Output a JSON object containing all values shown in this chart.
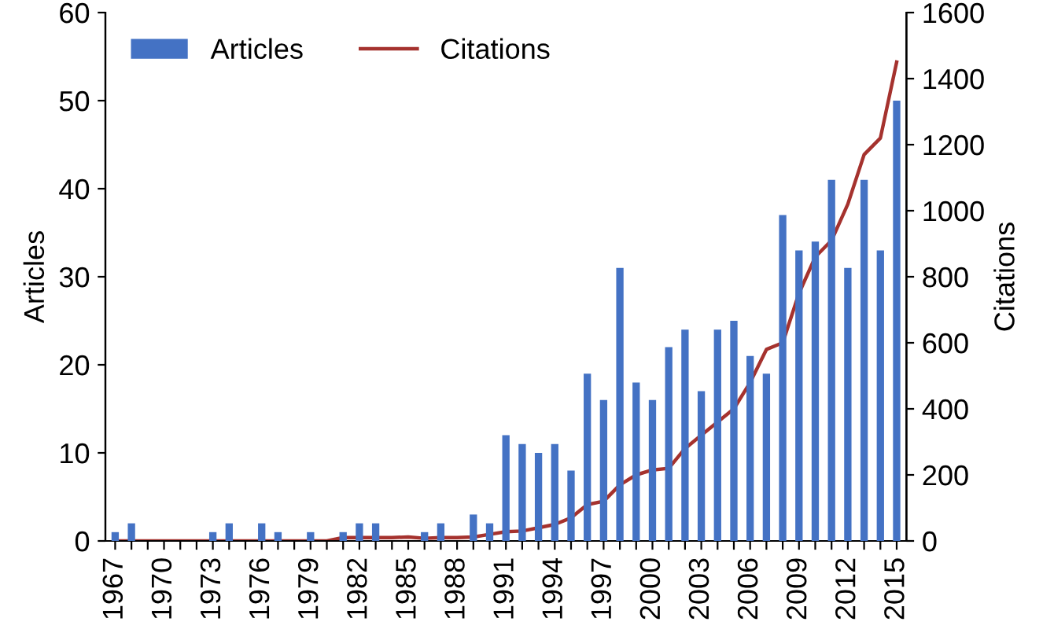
{
  "chart_data": {
    "type": "bar",
    "ylabel": "Articles",
    "y2label": "Citations",
    "categories": [
      "1967",
      null,
      null,
      "1970",
      null,
      null,
      "1973",
      null,
      null,
      "1976",
      null,
      null,
      "1979",
      null,
      null,
      "1982",
      null,
      null,
      "1985",
      null,
      null,
      "1988",
      null,
      null,
      "1991",
      null,
      null,
      "1994",
      null,
      null,
      "1997",
      null,
      null,
      "2000",
      null,
      null,
      "2003",
      null,
      null,
      "2006",
      null,
      null,
      "2009",
      null,
      null,
      "2012",
      null,
      null,
      "2015"
    ],
    "series": [
      {
        "name": "Articles",
        "color": "#4472c4",
        "values": [
          1,
          2,
          0,
          0,
          0,
          0,
          1,
          2,
          0,
          2,
          1,
          0,
          1,
          0,
          1,
          2,
          2,
          0,
          0,
          1,
          2,
          0,
          3,
          2,
          12,
          11,
          10,
          11,
          8,
          19,
          16,
          31,
          18,
          16,
          22,
          24,
          17,
          24,
          25,
          21,
          19,
          37,
          33,
          34,
          41,
          31,
          41,
          33,
          50
        ]
      },
      {
        "name": "Citations",
        "type": "line",
        "axis": "y2",
        "color": "#a5322e",
        "values": [
          0,
          0,
          0,
          0,
          0,
          0,
          0,
          0,
          0,
          0,
          0,
          0,
          0,
          0,
          10,
          10,
          10,
          10,
          12,
          8,
          10,
          10,
          12,
          20,
          28,
          30,
          40,
          50,
          70,
          110,
          120,
          170,
          200,
          215,
          220,
          280,
          320,
          360,
          400,
          480,
          580,
          600,
          750,
          860,
          910,
          1020,
          1170,
          1220,
          1450
        ]
      }
    ],
    "ylim": [
      0,
      60
    ],
    "yticks": [
      0,
      10,
      20,
      30,
      40,
      50,
      60
    ],
    "y2lim": [
      0,
      1600
    ],
    "y2ticks": [
      0,
      200,
      400,
      600,
      800,
      1000,
      1200,
      1400,
      1600
    ],
    "legend": "top left",
    "grid": false
  }
}
